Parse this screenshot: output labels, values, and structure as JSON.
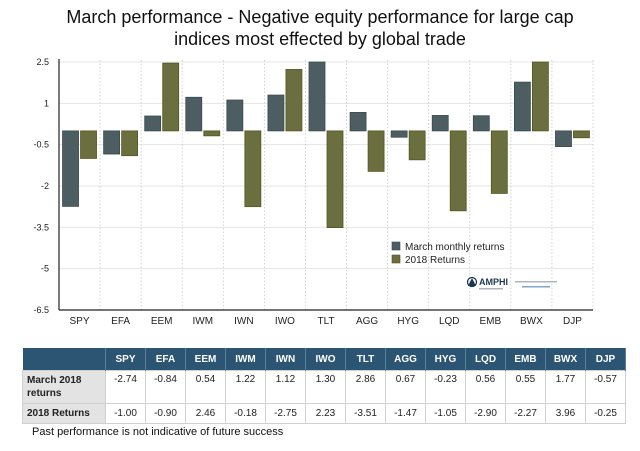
{
  "chart_data": {
    "type": "bar",
    "title": "March performance - Negative equity performance for large cap indices most effected by global trade",
    "title_lines": [
      "March performance - Negative equity performance for large cap",
      "indices most effected by global trade"
    ],
    "xlabel": "",
    "ylabel": "",
    "ylim": [
      -6.5,
      2.5
    ],
    "yticks": [
      2.5,
      1,
      -0.5,
      -2,
      -3.5,
      -5,
      -6.5
    ],
    "ytick_labels": [
      "2.5",
      "1",
      "-0.5",
      "-2",
      "-3.5",
      "-5",
      "-6.5"
    ],
    "grid": true,
    "legend_position": "bottom-right",
    "categories": [
      "SPY",
      "EFA",
      "EEM",
      "IWM",
      "IWN",
      "IWO",
      "TLT",
      "AGG",
      "HYG",
      "LQD",
      "EMB",
      "BWX",
      "DJP"
    ],
    "series": [
      {
        "name": "March monthly returns",
        "color": "#4d5e62",
        "values": [
          -2.74,
          -0.84,
          0.54,
          1.22,
          1.12,
          1.3,
          2.86,
          0.67,
          -0.23,
          0.56,
          0.55,
          1.77,
          -0.57
        ]
      },
      {
        "name": "2018 Returns",
        "color": "#6b6e3e",
        "values": [
          -1.0,
          -0.9,
          2.46,
          -0.18,
          -2.75,
          2.23,
          -3.51,
          -1.47,
          -1.05,
          -2.9,
          -2.27,
          3.96,
          -0.25
        ]
      }
    ]
  },
  "logo": {
    "brand": "AMPHI"
  },
  "table": {
    "headers": [
      "",
      "SPY",
      "EFA",
      "EEM",
      "IWM",
      "IWN",
      "IWO",
      "TLT",
      "AGG",
      "HYG",
      "LQD",
      "EMB",
      "BWX",
      "DJP"
    ],
    "rows": [
      {
        "label_line1": "March 2018",
        "label_line2": "returns",
        "values": [
          "-2.74",
          "-0.84",
          "0.54",
          "1.22",
          "1.12",
          "1.30",
          "2.86",
          "0.67",
          "-0.23",
          "0.56",
          "0.55",
          "1.77",
          "-0.57"
        ]
      },
      {
        "label": "2018 Returns",
        "values": [
          "-1.00",
          "-0.90",
          "2.46",
          "-0.18",
          "-2.75",
          "2.23",
          "-3.51",
          "-1.47",
          "-1.05",
          "-2.90",
          "-2.27",
          "3.96",
          "-0.25"
        ]
      }
    ]
  },
  "footnote": "Past performance is not indicative of future success",
  "colors": {
    "header_bg": "#2b5573",
    "label_bg": "#e3e3e3",
    "march": "#4d5e62",
    "ytd": "#6b6e3e"
  }
}
